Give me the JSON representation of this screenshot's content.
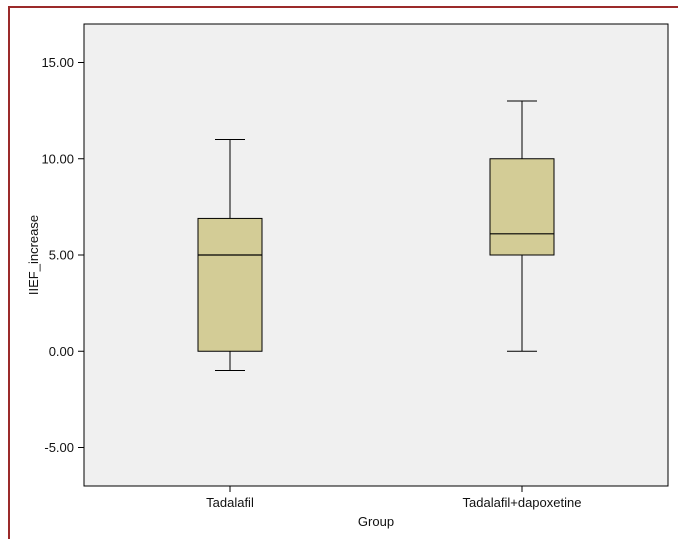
{
  "chart_data": {
    "type": "boxplot",
    "title": "",
    "xlabel": "Group",
    "ylabel": "IIEF_increase",
    "ylim": [
      -7.0,
      17.0
    ],
    "yticks": [
      15.0,
      10.0,
      5.0,
      0.0,
      -5.0
    ],
    "ytick_labels": [
      "15.00",
      "10.00",
      "5.00",
      "0.00",
      "-5.00"
    ],
    "categories": [
      "Tadalafil",
      "Tadalafil+dapoxetine"
    ],
    "boxes": [
      {
        "category": "Tadalafil",
        "min": -1.0,
        "q1": 0.0,
        "median": 5.0,
        "q3": 6.9,
        "max": 11.0
      },
      {
        "category": "Tadalafil+dapoxetine",
        "min": 0.0,
        "q1": 5.0,
        "median": 6.1,
        "q3": 10.0,
        "max": 13.0
      }
    ],
    "box_color": "#d3cc96",
    "plot_background": "#f0f0f0",
    "grid": false,
    "legend": "none"
  }
}
